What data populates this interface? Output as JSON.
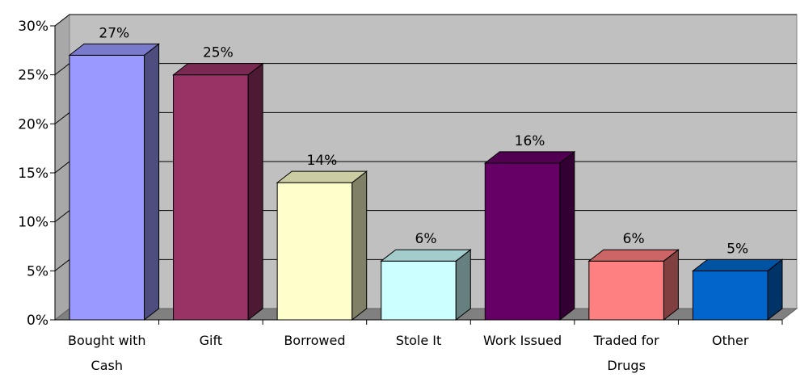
{
  "chart_data": {
    "type": "bar",
    "title": "",
    "xlabel": "",
    "ylabel": "",
    "ylim": [
      0,
      30
    ],
    "y_ticks": [
      0,
      5,
      10,
      15,
      20,
      25,
      30
    ],
    "y_tick_labels": [
      "0%",
      "5%",
      "10%",
      "15%",
      "20%",
      "25%",
      "30%"
    ],
    "grid": true,
    "legend": "none",
    "categories": [
      [
        "Bought with",
        "Cash"
      ],
      [
        "Gift"
      ],
      [
        "Borrowed"
      ],
      [
        "Stole It"
      ],
      [
        "Work Issued"
      ],
      [
        "Traded for",
        "Drugs"
      ],
      [
        "Other"
      ]
    ],
    "values": [
      27,
      25,
      14,
      6,
      16,
      6,
      5
    ],
    "data_labels": [
      "27%",
      "25%",
      "14%",
      "6%",
      "16%",
      "6%",
      "5%"
    ],
    "colors": [
      "#9999ff",
      "#993366",
      "#ffffcc",
      "#ccffff",
      "#660066",
      "#ff8080",
      "#0066cc"
    ],
    "side_colors": [
      "#4d4d80",
      "#4d1a33",
      "#808066",
      "#668080",
      "#330033",
      "#804040",
      "#003366"
    ],
    "top_colors": [
      "#7a7acc",
      "#7a2952",
      "#cccca3",
      "#a3cccc",
      "#520052",
      "#cc6666",
      "#0052a3"
    ]
  }
}
